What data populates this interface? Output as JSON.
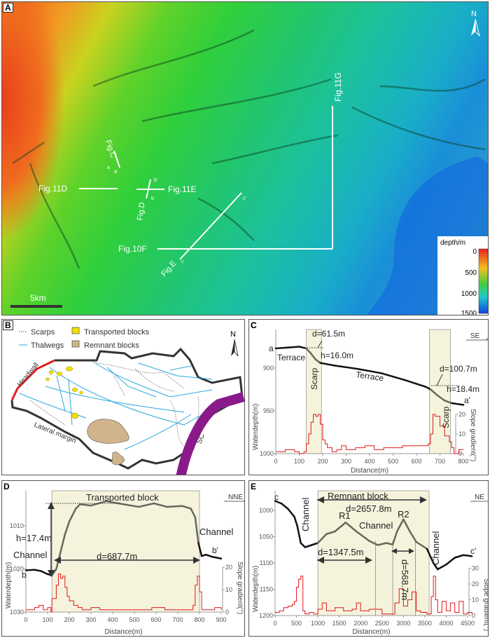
{
  "panel_a": {
    "label": "A",
    "north": "N",
    "scale_bar": "5km",
    "colorbar": {
      "title": "depth/m",
      "ticks": [
        "0",
        "500",
        "1000",
        "1500"
      ],
      "colors": [
        "#e8201c",
        "#f4a020",
        "#3cd040",
        "#20c8d0",
        "#1040e0"
      ]
    },
    "labels": {
      "fig_c": "Fig.C",
      "a": "a",
      "a_prime": "a'",
      "fig_11d": "Fig.11D",
      "fig_11e": "Fig.11E",
      "fig_d": "Fig.D",
      "b": "b",
      "b_prime": "b'",
      "fig_e": "Fig.E",
      "c": "c",
      "c_prime": "c'",
      "fig_10f": "Fig.10F",
      "fig_11g": "Fig.11G"
    }
  },
  "panel_b": {
    "label": "B",
    "legend": {
      "scarps": "Scarps",
      "thalwegs": "Thalwegs",
      "transported": "Transported blocks",
      "remnant": "Remnant blocks"
    },
    "north": "N",
    "headwall": "Headwall",
    "lateral_margin": "Lateral margin",
    "sc": "SC",
    "colors": {
      "thalweg": "#29a8e0",
      "headwall": "#e02020",
      "transported": "#f0e000",
      "remnant": "#d2b48c",
      "sc": "#8a1a8a"
    }
  },
  "chart_data": [
    {
      "panel": "C",
      "type": "line",
      "direction": "SE",
      "xlabel": "Distance(m)",
      "ylabel": "Waterdepth(m)",
      "y2label": "Slope gradient(°)",
      "xlim": [
        0,
        800
      ],
      "xticks": [
        0,
        100,
        200,
        300,
        400,
        500,
        600,
        700,
        800
      ],
      "ylim": [
        860,
        1000
      ],
      "yticks": [
        900,
        950,
        1000
      ],
      "y2lim": [
        0,
        40
      ],
      "y2ticks": [
        0,
        10,
        20
      ],
      "bands": [
        [
          130,
          195
        ],
        [
          655,
          745
        ]
      ],
      "depth": {
        "x": [
          0,
          50,
          100,
          130,
          150,
          170,
          190,
          250,
          350,
          450,
          550,
          640,
          660,
          690,
          720,
          750,
          800
        ],
        "y": [
          877,
          876,
          875,
          877,
          883,
          890,
          894,
          897,
          901,
          906,
          914,
          922,
          925,
          932,
          938,
          941,
          943
        ]
      },
      "slope": {
        "x": [
          0,
          20,
          40,
          60,
          80,
          100,
          120,
          130,
          140,
          150,
          160,
          170,
          180,
          190,
          200,
          210,
          220,
          240,
          260,
          280,
          300,
          340,
          380,
          420,
          460,
          500,
          540,
          580,
          620,
          650,
          660,
          670,
          680,
          700,
          720,
          740,
          750,
          760,
          780,
          800
        ],
        "y": [
          1,
          1,
          2,
          2,
          1,
          0,
          1,
          5,
          10,
          16,
          20,
          19,
          20,
          15,
          7,
          5,
          3,
          1,
          2,
          4,
          2,
          3,
          4,
          2,
          3,
          3,
          4,
          4,
          4,
          5,
          10,
          20,
          19,
          14,
          9,
          6,
          3,
          0,
          2,
          2
        ]
      },
      "annotations": {
        "start": "a",
        "end": "a'",
        "terrace1": "Terrace",
        "terrace2": "Terrace",
        "scarp1": "Scarp",
        "scarp2": "Scarp",
        "d1": "d=61.5m",
        "h1": "h=16.0m",
        "d2": "d=100.7m",
        "h2": "h=18.4m"
      }
    },
    {
      "panel": "D",
      "type": "line",
      "direction": "NNE",
      "xlabel": "Distance(m)",
      "ylabel": "Waterdepth(m)",
      "y2label": "Slope gradient(°)",
      "xlim": [
        0,
        900
      ],
      "xticks": [
        0,
        100,
        200,
        300,
        400,
        500,
        600,
        700,
        800,
        900
      ],
      "ylim": [
        1003,
        1030
      ],
      "yticks": [
        1010,
        1020,
        1030
      ],
      "y2lim": [
        0,
        40
      ],
      "y2ticks": [
        0,
        10,
        20
      ],
      "bands": [
        [
          120,
          800
        ]
      ],
      "depth": {
        "x": [
          0,
          40,
          70,
          100,
          120,
          140,
          160,
          180,
          200,
          230,
          250,
          300,
          370,
          450,
          520,
          590,
          650,
          720,
          760,
          780,
          795,
          810,
          830,
          860,
          900
        ],
        "y": [
          1020.3,
          1020.2,
          1020.5,
          1021.2,
          1021.5,
          1020,
          1016,
          1012,
          1009,
          1006,
          1005,
          1005.3,
          1004.3,
          1005,
          1005.6,
          1004.8,
          1005.6,
          1005.4,
          1006,
          1008,
          1014,
          1017,
          1016.7,
          1017.2,
          1017.6
        ]
      },
      "slope": {
        "x": [
          0,
          20,
          40,
          60,
          80,
          100,
          115,
          120,
          140,
          150,
          160,
          170,
          180,
          190,
          200,
          220,
          240,
          260,
          300,
          340,
          400,
          460,
          520,
          580,
          640,
          700,
          750,
          770,
          780,
          790,
          800,
          810,
          840,
          870,
          900
        ],
        "y": [
          1,
          1,
          2,
          3,
          1,
          2,
          0,
          6,
          12,
          17,
          15,
          16,
          11,
          7,
          5,
          3,
          2,
          1,
          2,
          1,
          1,
          1,
          1,
          2,
          1,
          1,
          1,
          3,
          12,
          16,
          9,
          1,
          1,
          2,
          1
        ]
      },
      "annotations": {
        "title": "Transported block",
        "start": "b",
        "end": "b'",
        "channel1": "Channel",
        "channel2": "Channel",
        "h": "h=17.4m",
        "d": "d=687.7m"
      }
    },
    {
      "panel": "E",
      "type": "line",
      "direction": "NE",
      "xlabel": "Distance(m)",
      "ylabel": "Waterdepth(m)",
      "y2label": "Slope gradient(°)",
      "xlim": [
        0,
        4600
      ],
      "xticks": [
        0,
        500,
        1000,
        1500,
        2000,
        2500,
        3000,
        3500,
        4000,
        4500
      ],
      "ylim": [
        980,
        1200
      ],
      "yticks": [
        1000,
        1050,
        1100,
        1150,
        1200
      ],
      "y2lim": [
        0,
        30
      ],
      "y2ticks": [
        0,
        10,
        20,
        30
      ],
      "bands": [
        [
          1000,
          3600
        ]
      ],
      "dividers": [
        2350,
        2750,
        3280
      ],
      "depth": {
        "x": [
          0,
          150,
          300,
          450,
          520,
          600,
          700,
          850,
          1000,
          1200,
          1400,
          1650,
          1900,
          2200,
          2400,
          2600,
          2750,
          2850,
          3000,
          3150,
          3300,
          3550,
          3700,
          3800,
          4000,
          4200,
          4400,
          4600
        ],
        "y": [
          982,
          987,
          997,
          1012,
          1030,
          1062,
          1070,
          1066,
          1062,
          1045,
          1040,
          1023,
          1040,
          1058,
          1066,
          1062,
          1065,
          1040,
          1017,
          1040,
          1060,
          1073,
          1100,
          1112,
          1103,
          1090,
          1085,
          1087
        ]
      },
      "slope": {
        "x": [
          0,
          100,
          200,
          300,
          400,
          450,
          500,
          550,
          600,
          650,
          700,
          800,
          900,
          1000,
          1100,
          1200,
          1400,
          1600,
          1800,
          1900,
          2000,
          2200,
          2350,
          2500,
          2700,
          2800,
          2900,
          3000,
          3100,
          3200,
          3300,
          3400,
          3550,
          3650,
          3700,
          3750,
          3800,
          3900,
          4000,
          4100,
          4200,
          4300,
          4400,
          4500,
          4600
        ],
        "y": [
          2,
          3,
          5,
          6,
          7,
          9,
          18,
          23,
          25,
          3,
          1,
          2,
          1,
          4,
          8,
          3,
          5,
          3,
          4,
          8,
          3,
          4,
          4,
          1,
          1,
          8,
          17,
          6,
          10,
          15,
          3,
          2,
          1,
          12,
          25,
          10,
          2,
          9,
          3,
          8,
          2,
          9,
          1,
          2,
          1
        ]
      },
      "annotations": {
        "title": "Remnant block",
        "start": "c",
        "end": "c'",
        "channel1": "Channel",
        "channel2": "Channel",
        "channel3": "Channel",
        "r1": "R1",
        "r2": "R2",
        "d_total": "d=2657.8m",
        "d1": "d=1347.5m",
        "d2": "d=568.7m"
      }
    }
  ]
}
